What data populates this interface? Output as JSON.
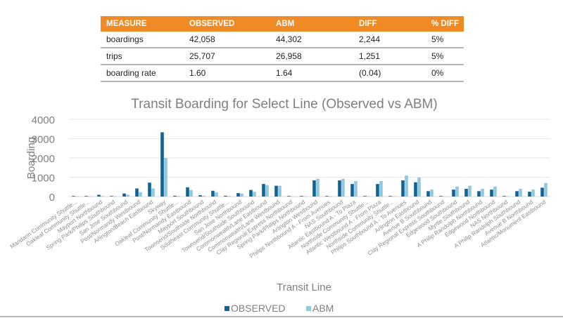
{
  "table": {
    "headers": [
      "MEASURE",
      "OBSERVED",
      "ABM",
      "DIFF",
      "% DIFF"
    ],
    "rows": [
      [
        "boardings",
        "42,058",
        "44,302",
        "2,244",
        "5%"
      ],
      [
        "trips",
        "25,707",
        "26,958",
        "1,251",
        "5%"
      ],
      [
        "boarding rate",
        "1.60",
        "1.64",
        "(0.04)",
        "0%"
      ]
    ],
    "header_color": "#f08a24"
  },
  "chart_data": {
    "type": "bar",
    "title": "Transit Boarding for Select Line (Observed vs ABM)",
    "xlabel": "Transit Line",
    "ylabel": "Boarding",
    "ylim": [
      0,
      4000
    ],
    "yticks": [
      0,
      1000,
      2000,
      3000,
      4000
    ],
    "grid": true,
    "legend_position": "bottom",
    "categories": [
      "Mandarin Community Shuttle...",
      "Oakleaf Community Shuttle...",
      "Mayport Northbound",
      "Spring Park/Philips Southbound",
      "San Jose Southbound",
      "Post/Normandy Westbound",
      "Arlington/Beach Eastbound",
      "Skyway",
      "Oakleaf Community Shuttle...",
      "Post/Normandy Eastbound",
      "Mayport Southbound",
      "Townsend/Southside Northbound",
      "Southeast Community Shuttle...",
      "San Jose Northbound",
      "Townsend/Southside Southbound",
      "Commonwealth/Lane Eastbound",
      "Commonwealth/Lane Westbound",
      "Clay Regional  Express Northbound",
      "Spring Park/Philips Northbound",
      "Arlington Westbound",
      "Philips Northbound A - From Avenues",
      "NAS Southbound",
      "Atlantic Eastbound A - To Plaza",
      "Northside Community Shuttle...",
      "Atlantic Westbound A - From Plaza",
      "Northside Community Shuttle...",
      "Philips Southbound A - To Avenues",
      "Arlington Eastbound",
      "Avenue B Southbound",
      "Clay Regional  Express Southbound",
      "Edgewood Southbound",
      "Myrtle Southbound",
      "A Philip Randolph Northbound",
      "Edgewood Northbound",
      "NAS Northbound",
      "A Philip Randolph Southbound",
      "Avenue B Northbound",
      "Atlantic/Monument Eastbound"
    ],
    "series": [
      {
        "name": "OBSERVED",
        "color": "#15628f",
        "values": [
          30,
          30,
          90,
          30,
          160,
          420,
          720,
          3330,
          40,
          480,
          70,
          300,
          40,
          180,
          340,
          650,
          560,
          30,
          30,
          840,
          30,
          840,
          650,
          30,
          650,
          30,
          840,
          740,
          280,
          30,
          360,
          400,
          280,
          360,
          30,
          280,
          250,
          460
        ]
      },
      {
        "name": "ABM",
        "color": "#8ecae0",
        "values": [
          20,
          20,
          30,
          20,
          100,
          230,
          420,
          2000,
          30,
          340,
          40,
          220,
          30,
          150,
          250,
          590,
          560,
          20,
          20,
          920,
          20,
          920,
          800,
          20,
          800,
          20,
          1090,
          990,
          360,
          20,
          520,
          560,
          400,
          520,
          20,
          400,
          360,
          700
        ]
      }
    ]
  }
}
